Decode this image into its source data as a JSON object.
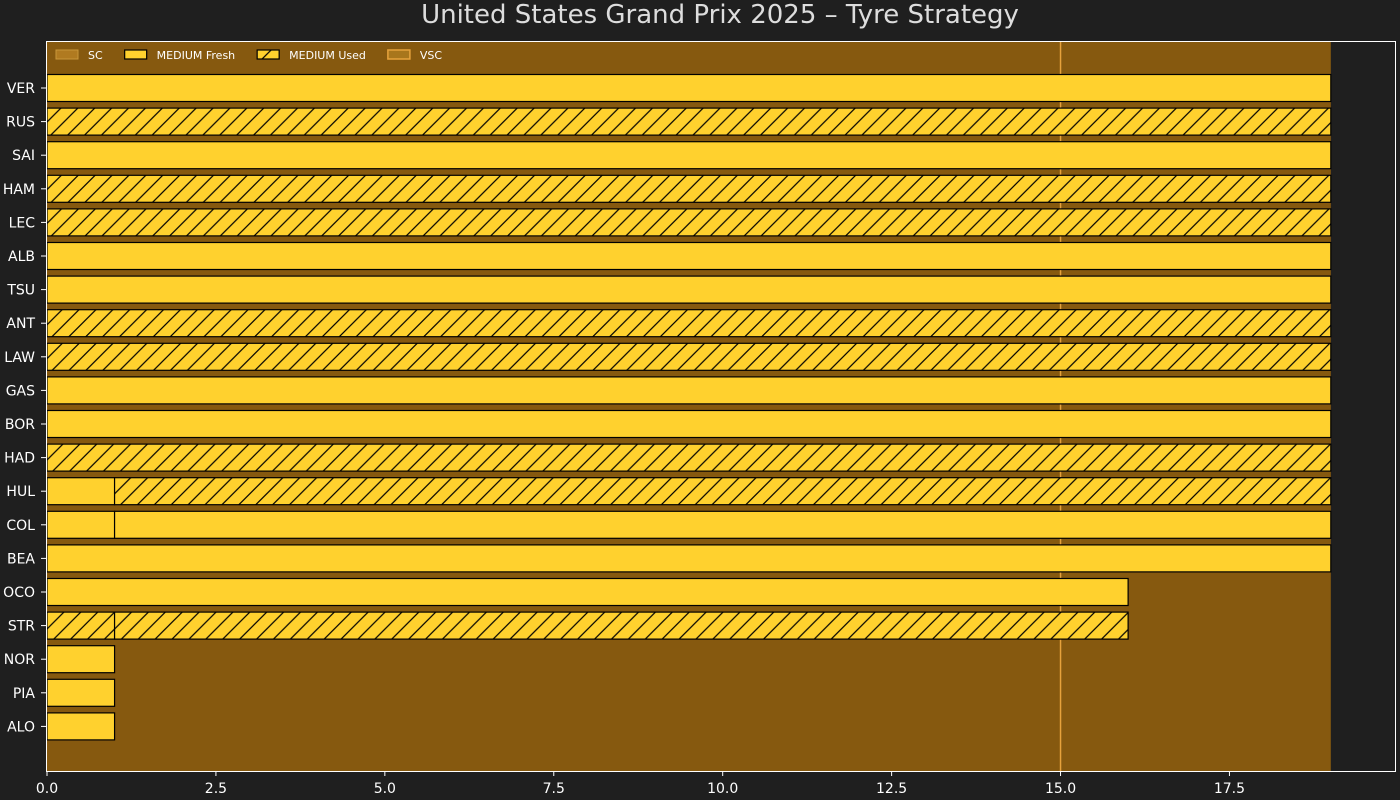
{
  "colors": {
    "background": "#1f1f1f",
    "sc_shade": "#86590f",
    "vsc_line": "#e6a23c",
    "medium": "#ffd12e",
    "bar_edge": "#000000",
    "text": "#ffffff",
    "title_text": "#dddddd",
    "legend_text": "#ffffff"
  },
  "chart_data": {
    "type": "bar",
    "orientation": "horizontal",
    "title": "United States Grand Prix 2025  –  Tyre Strategy",
    "xlabel": "",
    "ylabel": "",
    "xlim": [
      0,
      19.95
    ],
    "xticks": [
      {
        "value": 0,
        "label": "0.0"
      },
      {
        "value": 2.5,
        "label": "2.5"
      },
      {
        "value": 5,
        "label": "5.0"
      },
      {
        "value": 7.5,
        "label": "7.5"
      },
      {
        "value": 10,
        "label": "10.0"
      },
      {
        "value": 12.5,
        "label": "12.5"
      },
      {
        "value": 15,
        "label": "15.0"
      },
      {
        "value": 17.5,
        "label": "17.5"
      }
    ],
    "grid": false,
    "legend": {
      "placement": "top-left",
      "entries": [
        {
          "label": "SC",
          "kind": "sc"
        },
        {
          "label": "MEDIUM Fresh",
          "kind": "fresh"
        },
        {
          "label": "MEDIUM Used",
          "kind": "used"
        },
        {
          "label": "VSC",
          "kind": "vsc"
        }
      ]
    },
    "sc_periods": [
      [
        0,
        19
      ]
    ],
    "vsc_laps": [
      15
    ],
    "drivers": [
      {
        "driver": "VER",
        "stints": [
          {
            "start": 0,
            "end": 19,
            "compound": "MEDIUM",
            "used": false
          }
        ]
      },
      {
        "driver": "RUS",
        "stints": [
          {
            "start": 0,
            "end": 19,
            "compound": "MEDIUM",
            "used": true
          }
        ]
      },
      {
        "driver": "SAI",
        "stints": [
          {
            "start": 0,
            "end": 19,
            "compound": "MEDIUM",
            "used": false
          }
        ]
      },
      {
        "driver": "HAM",
        "stints": [
          {
            "start": 0,
            "end": 19,
            "compound": "MEDIUM",
            "used": true
          }
        ]
      },
      {
        "driver": "LEC",
        "stints": [
          {
            "start": 0,
            "end": 19,
            "compound": "MEDIUM",
            "used": true
          }
        ]
      },
      {
        "driver": "ALB",
        "stints": [
          {
            "start": 0,
            "end": 19,
            "compound": "MEDIUM",
            "used": false
          }
        ]
      },
      {
        "driver": "TSU",
        "stints": [
          {
            "start": 0,
            "end": 19,
            "compound": "MEDIUM",
            "used": false
          }
        ]
      },
      {
        "driver": "ANT",
        "stints": [
          {
            "start": 0,
            "end": 19,
            "compound": "MEDIUM",
            "used": true
          }
        ]
      },
      {
        "driver": "LAW",
        "stints": [
          {
            "start": 0,
            "end": 19,
            "compound": "MEDIUM",
            "used": true
          }
        ]
      },
      {
        "driver": "GAS",
        "stints": [
          {
            "start": 0,
            "end": 19,
            "compound": "MEDIUM",
            "used": false
          }
        ]
      },
      {
        "driver": "BOR",
        "stints": [
          {
            "start": 0,
            "end": 19,
            "compound": "MEDIUM",
            "used": false
          }
        ]
      },
      {
        "driver": "HAD",
        "stints": [
          {
            "start": 0,
            "end": 19,
            "compound": "MEDIUM",
            "used": true
          }
        ]
      },
      {
        "driver": "HUL",
        "stints": [
          {
            "start": 0,
            "end": 1,
            "compound": "MEDIUM",
            "used": false
          },
          {
            "start": 1,
            "end": 19,
            "compound": "MEDIUM",
            "used": true
          }
        ]
      },
      {
        "driver": "COL",
        "stints": [
          {
            "start": 0,
            "end": 1,
            "compound": "MEDIUM",
            "used": false
          },
          {
            "start": 1,
            "end": 19,
            "compound": "MEDIUM",
            "used": false
          }
        ]
      },
      {
        "driver": "BEA",
        "stints": [
          {
            "start": 0,
            "end": 19,
            "compound": "MEDIUM",
            "used": false
          }
        ]
      },
      {
        "driver": "OCO",
        "stints": [
          {
            "start": 0,
            "end": 16,
            "compound": "MEDIUM",
            "used": false
          }
        ]
      },
      {
        "driver": "STR",
        "stints": [
          {
            "start": 0,
            "end": 1,
            "compound": "MEDIUM",
            "used": true
          },
          {
            "start": 1,
            "end": 16,
            "compound": "MEDIUM",
            "used": true
          }
        ]
      },
      {
        "driver": "NOR",
        "stints": [
          {
            "start": 0,
            "end": 1,
            "compound": "MEDIUM",
            "used": false
          }
        ]
      },
      {
        "driver": "PIA",
        "stints": [
          {
            "start": 0,
            "end": 1,
            "compound": "MEDIUM",
            "used": false
          }
        ]
      },
      {
        "driver": "ALO",
        "stints": [
          {
            "start": 0,
            "end": 1,
            "compound": "MEDIUM",
            "used": false
          }
        ]
      }
    ]
  }
}
